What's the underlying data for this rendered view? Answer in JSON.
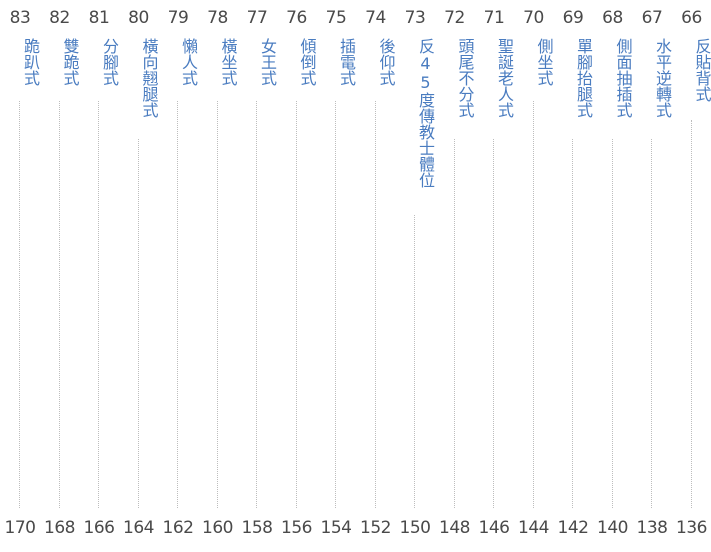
{
  "entries": [
    {
      "num": "83",
      "title": "跪趴式",
      "page": "170"
    },
    {
      "num": "82",
      "title": "雙跪式",
      "page": "168"
    },
    {
      "num": "81",
      "title": "分腳式",
      "page": "166"
    },
    {
      "num": "80",
      "title": "橫向翹腿式",
      "page": "164"
    },
    {
      "num": "79",
      "title": "懶人式",
      "page": "162"
    },
    {
      "num": "78",
      "title": "橫坐式",
      "page": "160"
    },
    {
      "num": "77",
      "title": "女王式",
      "page": "158"
    },
    {
      "num": "76",
      "title": "傾倒式",
      "page": "156"
    },
    {
      "num": "75",
      "title": "插電式",
      "page": "154"
    },
    {
      "num": "74",
      "title": "後仰式",
      "page": "152"
    },
    {
      "num": "73",
      "title": "反45度傳教士體位",
      "page": "150"
    },
    {
      "num": "72",
      "title": "頭尾不分式",
      "page": "148"
    },
    {
      "num": "71",
      "title": "聖誕老人式",
      "page": "146"
    },
    {
      "num": "70",
      "title": "側坐式",
      "page": "144"
    },
    {
      "num": "69",
      "title": "單腳抬腿式",
      "page": "142"
    },
    {
      "num": "68",
      "title": "側面抽插式",
      "page": "140"
    },
    {
      "num": "67",
      "title": "水平逆轉式",
      "page": "138"
    },
    {
      "num": "66",
      "title": "反貼背式",
      "page": "136"
    }
  ],
  "colors": {
    "number": "#4a4a4a",
    "title": "#4a7cc0",
    "leader": "#bdbdbd"
  }
}
